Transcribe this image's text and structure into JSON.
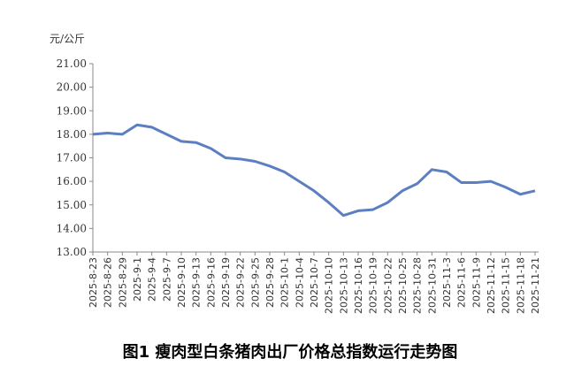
{
  "chart_data": {
    "type": "line",
    "title": "图1 瘦肉型白条猪肉出厂价格总指数运行走势图",
    "y_unit": "元/公斤",
    "categories": [
      "2025-8-23",
      "2025-8-26",
      "2025-8-29",
      "2025-9-1",
      "2025-9-4",
      "2025-9-7",
      "2025-9-10",
      "2025-9-13",
      "2025-9-16",
      "2025-9-19",
      "2025-9-22",
      "2025-9-25",
      "2025-9-28",
      "2025-10-1",
      "2025-10-4",
      "2025-10-7",
      "2025-10-10",
      "2025-10-13",
      "2025-10-16",
      "2025-10-19",
      "2025-10-22",
      "2025-10-25",
      "2025-10-28",
      "2025-10-31",
      "2025-11-3",
      "2025-11-6",
      "2025-11-9",
      "2025-11-12",
      "2025-11-15",
      "2025-11-18",
      "2025-11-21"
    ],
    "values": [
      18.0,
      18.05,
      18.0,
      18.4,
      18.3,
      18.0,
      17.7,
      17.65,
      17.4,
      17.0,
      16.95,
      16.85,
      16.65,
      16.4,
      16.0,
      15.6,
      15.1,
      14.55,
      14.75,
      14.8,
      15.1,
      15.6,
      15.9,
      16.5,
      16.4,
      15.95,
      15.95,
      16.0,
      15.75,
      15.45,
      15.6
    ],
    "color": "#5b7fc0",
    "ylim": [
      13,
      21
    ],
    "yticks": [
      {
        "value": 13,
        "label": "13.00"
      },
      {
        "value": 14,
        "label": "14.00"
      },
      {
        "value": 15,
        "label": "15.00"
      },
      {
        "value": 16,
        "label": "16.00"
      },
      {
        "value": 17,
        "label": "17.00"
      },
      {
        "value": 18,
        "label": "18.00"
      },
      {
        "value": 19,
        "label": "19.00"
      },
      {
        "value": 20,
        "label": "20.00"
      },
      {
        "value": 21,
        "label": "21.00"
      }
    ],
    "grid": false
  }
}
